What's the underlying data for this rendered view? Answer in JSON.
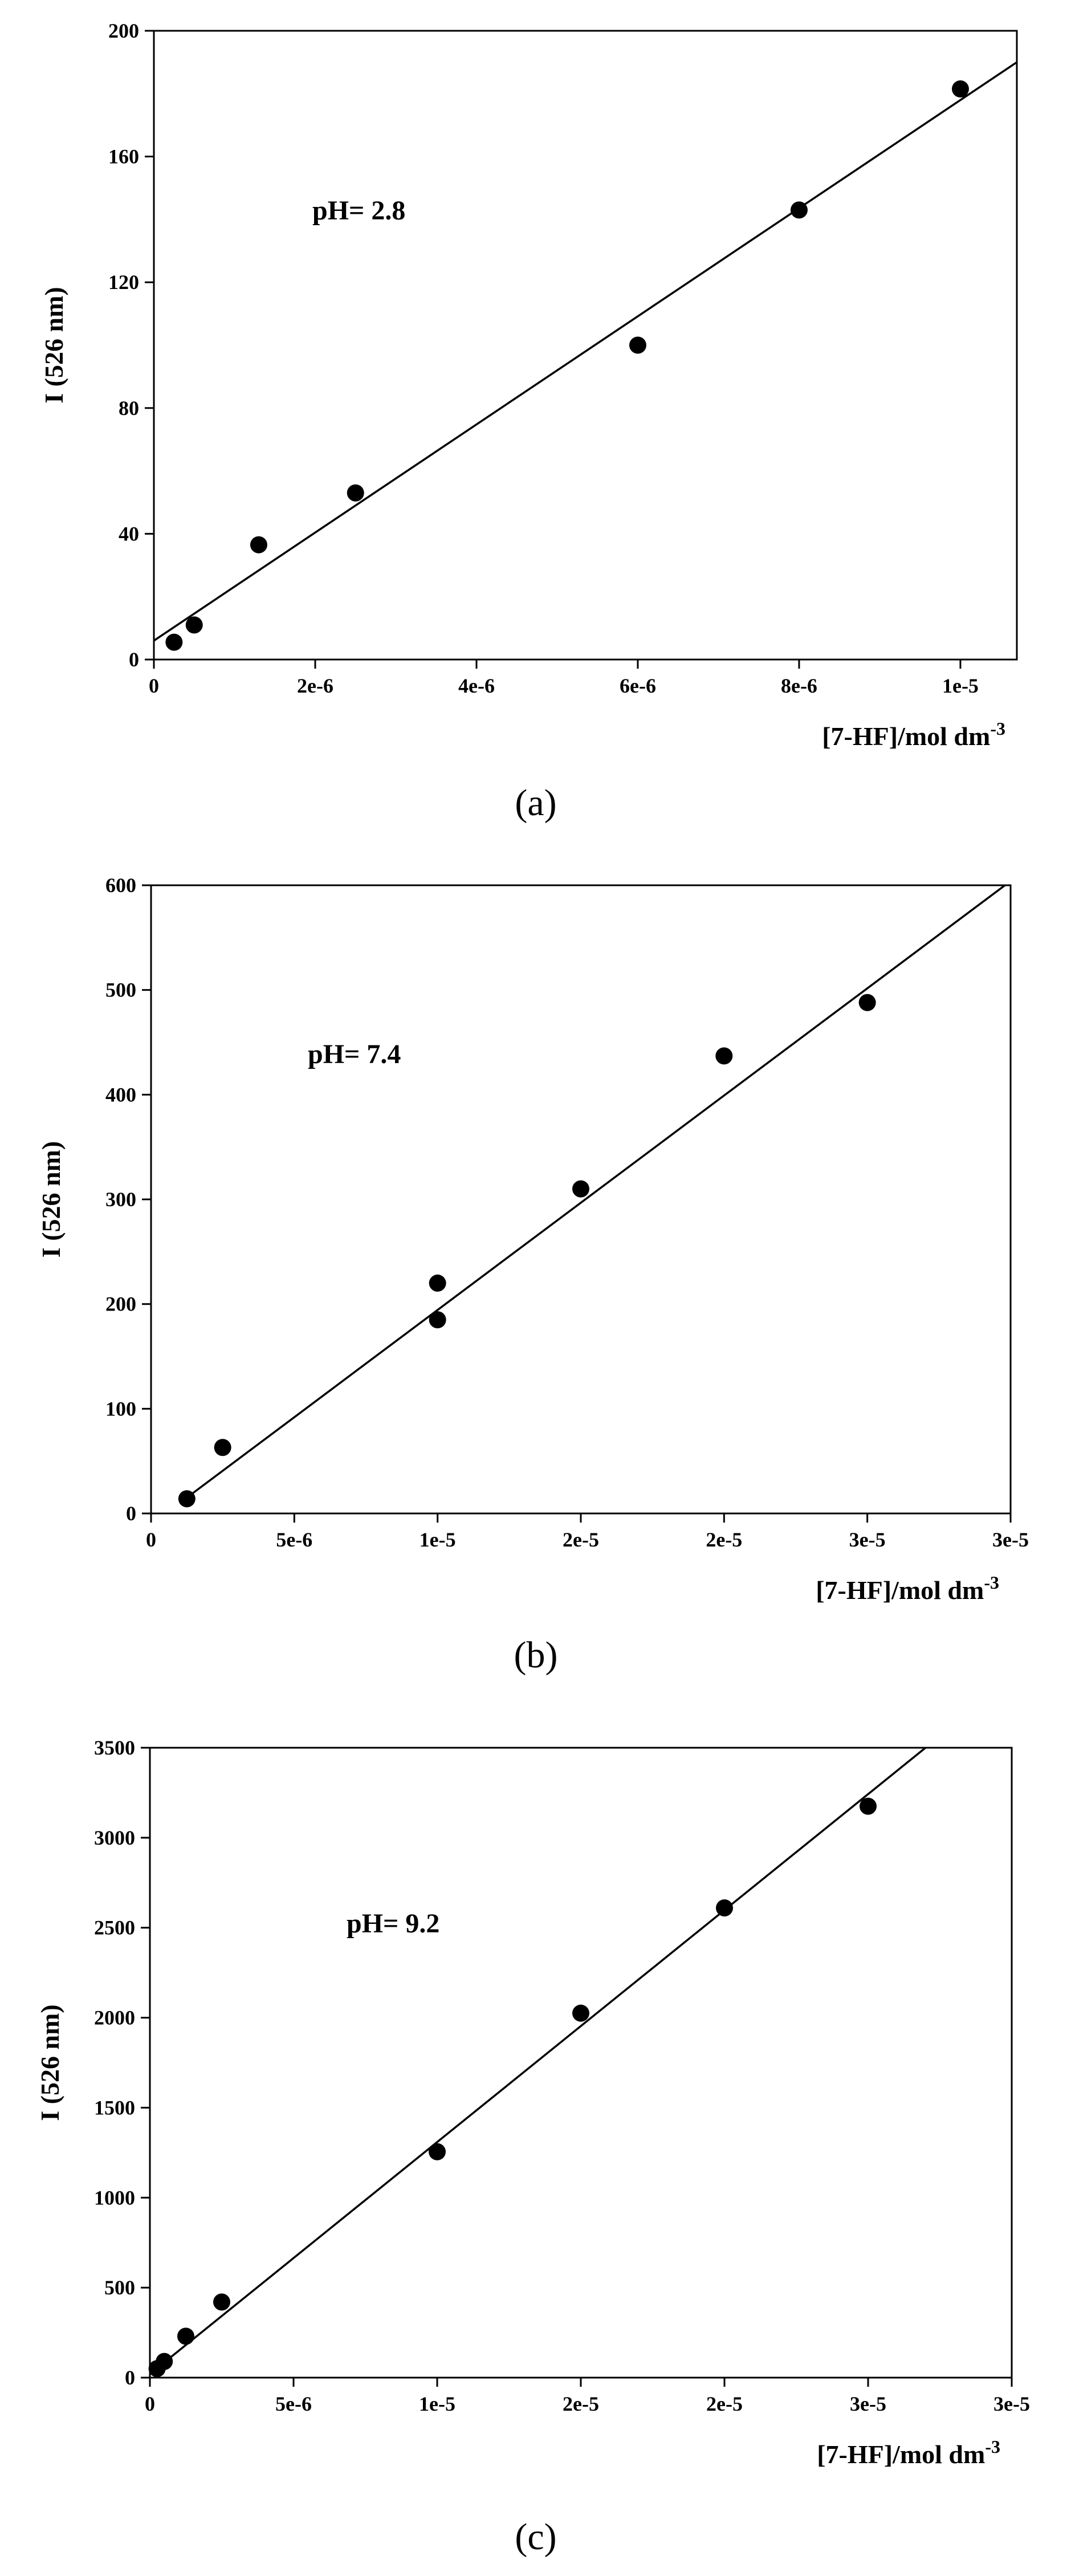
{
  "chart_data": [
    {
      "type": "scatter",
      "panel_label": "(a)",
      "annotation": "pH= 2.8",
      "xlabel": "[7-HF]/mol dm",
      "xlabel_sup": "-3",
      "ylabel": "I (526 nm)",
      "xlim": [
        0,
        1.07e-05
      ],
      "ylim": [
        0,
        200
      ],
      "x_ticks": [
        0,
        2e-06,
        4e-06,
        6e-06,
        8e-06,
        1e-05
      ],
      "x_tick_labels": [
        "0",
        "2e-6",
        "4e-6",
        "6e-6",
        "8e-6",
        "1e-5"
      ],
      "y_ticks": [
        0,
        40,
        80,
        120,
        160,
        200
      ],
      "y_tick_labels": [
        "0",
        "40",
        "80",
        "120",
        "160",
        "200"
      ],
      "grid": false,
      "series": [
        {
          "points": [
            [
              2.5e-07,
              5.5
            ],
            [
              5e-07,
              11
            ],
            [
              1.3e-06,
              36.5
            ],
            [
              2.5e-06,
              53
            ],
            [
              6e-06,
              100
            ],
            [
              8e-06,
              143
            ],
            [
              1e-05,
              181.5
            ]
          ],
          "fit_line": [
            [
              0,
              6
            ],
            [
              1.07e-05,
              190
            ]
          ]
        }
      ]
    },
    {
      "type": "scatter",
      "panel_label": "(b)",
      "annotation": "pH= 7.4",
      "xlabel": "[7-HF]/mol dm",
      "xlabel_sup": "-3",
      "ylabel": "I (526 nm)",
      "xlim": [
        0,
        3e-05
      ],
      "ylim": [
        0,
        600
      ],
      "x_ticks": [
        0,
        5e-06,
        1e-05,
        1.5e-05,
        2e-05,
        2.5e-05,
        3e-05
      ],
      "x_tick_labels": [
        "0",
        "5e-6",
        "1e-5",
        "2e-5",
        "2e-5",
        "3e-5",
        "3e-5"
      ],
      "y_ticks": [
        0,
        100,
        200,
        300,
        400,
        500,
        600
      ],
      "y_tick_labels": [
        "0",
        "100",
        "200",
        "300",
        "400",
        "500",
        "600"
      ],
      "grid": false,
      "series": [
        {
          "points": [
            [
              1.25e-06,
              14
            ],
            [
              2.5e-06,
              63
            ],
            [
              1e-05,
              220
            ],
            [
              1e-05,
              185
            ],
            [
              1.5e-05,
              310
            ],
            [
              2e-05,
              437
            ],
            [
              2.5e-05,
              488
            ]
          ],
          "fit_line": [
            [
              1e-06,
              10
            ],
            [
              3e-05,
              604
            ]
          ]
        }
      ]
    },
    {
      "type": "scatter",
      "panel_label": "(c)",
      "annotation": "pH= 9.2",
      "xlabel": "[7-HF]/mol dm",
      "xlabel_sup": "-3",
      "ylabel": "I (526 nm)",
      "xlim": [
        0,
        3e-05
      ],
      "ylim": [
        0,
        3500
      ],
      "x_ticks": [
        0,
        5e-06,
        1e-05,
        1.5e-05,
        2e-05,
        2.5e-05,
        3e-05
      ],
      "x_tick_labels": [
        "0",
        "5e-6",
        "1e-5",
        "2e-5",
        "2e-5",
        "3e-5",
        "3e-5"
      ],
      "y_ticks": [
        0,
        500,
        1000,
        1500,
        2000,
        2500,
        3000,
        3500
      ],
      "y_tick_labels": [
        "0",
        "500",
        "1000",
        "1500",
        "2000",
        "2500",
        "3000",
        "3500"
      ],
      "grid": false,
      "series": [
        {
          "points": [
            [
              2.5e-07,
              50
            ],
            [
              5e-07,
              90
            ],
            [
              1.25e-06,
              230
            ],
            [
              2.5e-06,
              420
            ],
            [
              1e-05,
              1255
            ],
            [
              1.5e-05,
              2025
            ],
            [
              2e-05,
              2610
            ],
            [
              2.5e-05,
              3175
            ]
          ],
          "fit_line": [
            [
              0,
              20
            ],
            [
              2.7e-05,
              3500
            ]
          ]
        }
      ]
    }
  ]
}
